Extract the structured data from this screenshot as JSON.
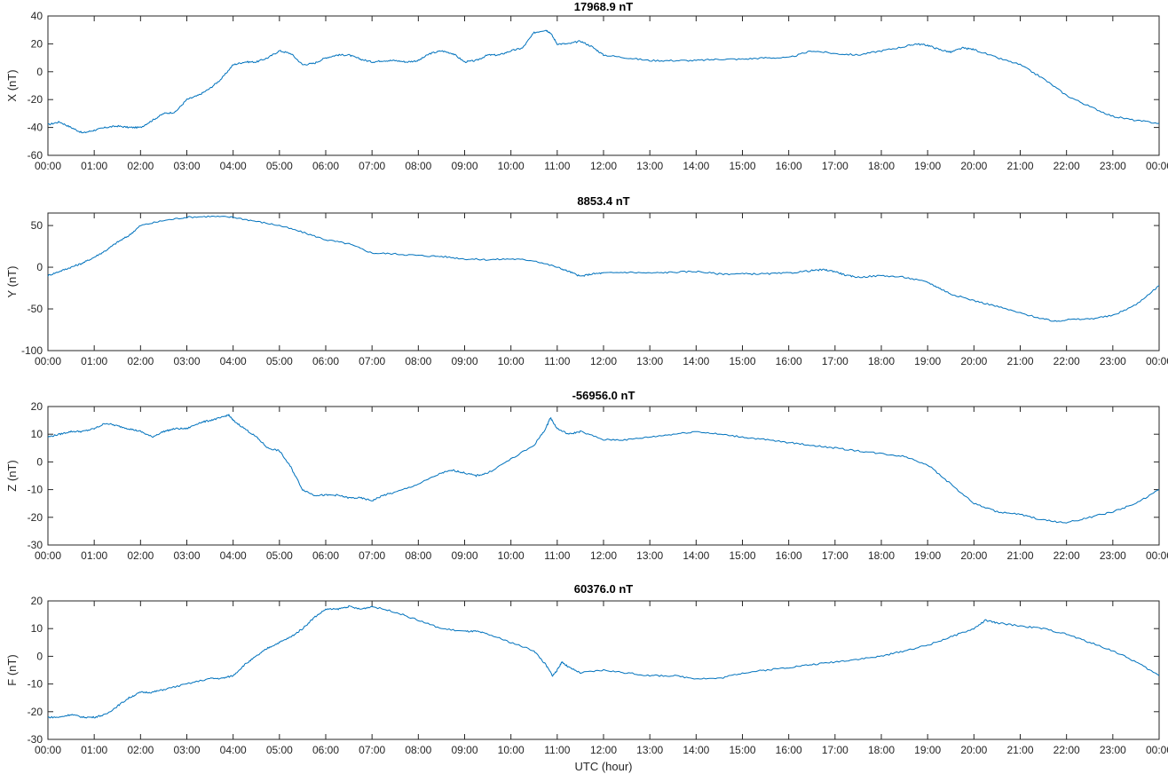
{
  "figure": {
    "xlabel": "UTC (hour)",
    "line_color": "#0072BD",
    "axis_color": "#262626"
  },
  "chart_data": [
    {
      "type": "line",
      "title": "17968.9 nT",
      "ylabel": "X (nT)",
      "xlabel": "",
      "xlim": [
        0,
        24
      ],
      "ylim": [
        -60,
        40
      ],
      "yticks": [
        -60,
        -40,
        -20,
        0,
        20,
        40
      ],
      "xtick_labels": [
        "00:00",
        "01:00",
        "02:00",
        "03:00",
        "04:00",
        "05:00",
        "06:00",
        "07:00",
        "08:00",
        "09:00",
        "10:00",
        "11:00",
        "12:00",
        "13:00",
        "14:00",
        "15:00",
        "16:00",
        "17:00",
        "18:00",
        "19:00",
        "20:00",
        "21:00",
        "22:00",
        "23:00",
        "00:00"
      ],
      "series": [
        {
          "x": [
            0,
            0.25,
            0.5,
            0.75,
            1.0,
            1.25,
            1.5,
            1.75,
            2.0,
            2.25,
            2.5,
            2.75,
            3.0,
            3.25,
            3.5,
            3.75,
            4.0,
            4.25,
            4.5,
            4.75,
            5.0,
            5.25,
            5.5,
            5.75,
            6.0,
            6.25,
            6.5,
            6.75,
            7.0,
            7.25,
            7.5,
            7.75,
            8.0,
            8.25,
            8.5,
            8.75,
            9.0,
            9.25,
            9.5,
            9.75,
            10.0,
            10.25,
            10.5,
            10.75,
            10.85,
            11.0,
            11.25,
            11.5,
            11.75,
            12.0,
            12.5,
            13.0,
            13.5,
            14.0,
            14.5,
            15.0,
            15.5,
            16.0,
            16.5,
            17.0,
            17.5,
            18.0,
            18.5,
            18.75,
            19.0,
            19.25,
            19.5,
            19.75,
            20.0,
            20.5,
            21.0,
            21.5,
            22.0,
            22.5,
            23.0,
            23.5,
            24.0
          ],
          "y": [
            -38,
            -36,
            -40,
            -44,
            -42,
            -40,
            -39,
            -40,
            -40,
            -35,
            -30,
            -29,
            -20,
            -17,
            -12,
            -5,
            5,
            7,
            7,
            10,
            15,
            13,
            5,
            6,
            10,
            12,
            12,
            9,
            7,
            8,
            8,
            7,
            8,
            13,
            15,
            13,
            7,
            8,
            12,
            12,
            15,
            17,
            28,
            30,
            28,
            20,
            20,
            22,
            18,
            12,
            10,
            8,
            8,
            8,
            9,
            9,
            10,
            10,
            15,
            13,
            12,
            15,
            18,
            20,
            19,
            16,
            14,
            17,
            16,
            10,
            5,
            -5,
            -17,
            -25,
            -32,
            -35,
            -37
          ]
        }
      ]
    },
    {
      "type": "line",
      "title": "8853.4 nT",
      "ylabel": "Y (nT)",
      "xlabel": "",
      "xlim": [
        0,
        24
      ],
      "ylim": [
        -100,
        65
      ],
      "yticks": [
        -100,
        -50,
        0,
        50
      ],
      "xtick_labels": [
        "00:00",
        "01:00",
        "02:00",
        "03:00",
        "04:00",
        "05:00",
        "06:00",
        "07:00",
        "08:00",
        "09:00",
        "10:00",
        "11:00",
        "12:00",
        "13:00",
        "14:00",
        "15:00",
        "16:00",
        "17:00",
        "18:00",
        "19:00",
        "20:00",
        "21:00",
        "22:00",
        "23:00",
        "00:00"
      ],
      "series": [
        {
          "x": [
            0,
            0.25,
            0.5,
            0.75,
            1.0,
            1.25,
            1.5,
            1.75,
            2.0,
            2.5,
            3.0,
            3.5,
            4.0,
            4.5,
            5.0,
            5.5,
            6.0,
            6.5,
            7.0,
            7.5,
            8.0,
            8.5,
            9.0,
            9.5,
            10.0,
            10.5,
            11.0,
            11.25,
            11.5,
            11.75,
            12.0,
            12.5,
            13.0,
            13.5,
            14.0,
            14.5,
            15.0,
            15.5,
            16.0,
            16.5,
            16.75,
            17.0,
            17.25,
            17.5,
            18.0,
            18.5,
            19.0,
            19.25,
            19.5,
            20.0,
            20.5,
            21.0,
            21.5,
            21.75,
            22.0,
            22.5,
            23.0,
            23.5,
            24.0
          ],
          "y": [
            -10,
            -5,
            0,
            5,
            12,
            20,
            30,
            38,
            50,
            56,
            60,
            61,
            60,
            55,
            50,
            42,
            33,
            28,
            17,
            16,
            14,
            13,
            10,
            9,
            10,
            8,
            0,
            -5,
            -11,
            -8,
            -7,
            -6,
            -7,
            -6,
            -5,
            -8,
            -8,
            -8,
            -7,
            -4,
            -3,
            -5,
            -10,
            -12,
            -10,
            -12,
            -18,
            -25,
            -32,
            -40,
            -47,
            -55,
            -62,
            -65,
            -63,
            -62,
            -58,
            -45,
            -22
          ]
        }
      ]
    },
    {
      "type": "line",
      "title": "-56956.0 nT",
      "ylabel": "Z (nT)",
      "xlabel": "",
      "xlim": [
        0,
        24
      ],
      "ylim": [
        -30,
        20
      ],
      "yticks": [
        -30,
        -20,
        -10,
        0,
        10,
        20
      ],
      "xtick_labels": [
        "00:00",
        "01:00",
        "02:00",
        "03:00",
        "04:00",
        "05:00",
        "06:00",
        "07:00",
        "08:00",
        "09:00",
        "10:00",
        "11:00",
        "12:00",
        "13:00",
        "14:00",
        "15:00",
        "16:00",
        "17:00",
        "18:00",
        "19:00",
        "20:00",
        "21:00",
        "22:00",
        "23:00",
        "00:00"
      ],
      "series": [
        {
          "x": [
            0,
            0.25,
            0.5,
            0.75,
            1.0,
            1.25,
            1.5,
            1.75,
            2.0,
            2.25,
            2.5,
            2.75,
            3.0,
            3.25,
            3.5,
            3.75,
            3.9,
            4.0,
            4.25,
            4.5,
            4.75,
            5.0,
            5.25,
            5.5,
            5.75,
            6.0,
            6.25,
            6.5,
            6.75,
            7.0,
            7.25,
            7.5,
            8.0,
            8.5,
            8.75,
            9.0,
            9.25,
            9.5,
            10.0,
            10.5,
            10.75,
            10.85,
            11.0,
            11.25,
            11.5,
            12.0,
            12.5,
            13.0,
            13.5,
            14.0,
            14.5,
            15.0,
            15.5,
            16.0,
            16.5,
            17.0,
            17.5,
            18.0,
            18.5,
            19.0,
            19.5,
            20.0,
            20.5,
            21.0,
            21.5,
            22.0,
            22.5,
            23.0,
            23.5,
            24.0
          ],
          "y": [
            9,
            10,
            11,
            11,
            12,
            14,
            13,
            12,
            11,
            9,
            11,
            12,
            12,
            14,
            15,
            16,
            17,
            15,
            12,
            9,
            5,
            4,
            -2,
            -10,
            -12,
            -12,
            -12,
            -13,
            -13,
            -14,
            -12,
            -11,
            -8,
            -4,
            -3,
            -4,
            -5,
            -4,
            1,
            6,
            12,
            16,
            12,
            10,
            11,
            8,
            8,
            9,
            10,
            11,
            10,
            9,
            8,
            7,
            6,
            5,
            4,
            3,
            2,
            -1,
            -8,
            -15,
            -18,
            -19,
            -21,
            -22,
            -20,
            -18,
            -15,
            -10
          ]
        }
      ]
    },
    {
      "type": "line",
      "title": "60376.0 nT",
      "ylabel": "F (nT)",
      "xlabel": "UTC (hour)",
      "xlim": [
        0,
        24
      ],
      "ylim": [
        -30,
        20
      ],
      "yticks": [
        -30,
        -20,
        -10,
        0,
        10,
        20
      ],
      "xtick_labels": [
        "00:00",
        "01:00",
        "02:00",
        "03:00",
        "04:00",
        "05:00",
        "06:00",
        "07:00",
        "08:00",
        "09:00",
        "10:00",
        "11:00",
        "12:00",
        "13:00",
        "14:00",
        "15:00",
        "16:00",
        "17:00",
        "18:00",
        "19:00",
        "20:00",
        "21:00",
        "22:00",
        "23:00",
        "00:00"
      ],
      "series": [
        {
          "x": [
            0,
            0.25,
            0.5,
            0.75,
            1.0,
            1.25,
            1.5,
            1.75,
            2.0,
            2.25,
            2.5,
            3.0,
            3.5,
            3.75,
            4.0,
            4.25,
            4.5,
            4.75,
            5.0,
            5.25,
            5.5,
            5.75,
            6.0,
            6.25,
            6.5,
            6.75,
            7.0,
            7.5,
            8.0,
            8.5,
            9.0,
            9.25,
            9.5,
            10.0,
            10.5,
            10.75,
            10.9,
            11.0,
            11.1,
            11.25,
            11.5,
            12.0,
            12.5,
            13.0,
            13.5,
            14.0,
            14.5,
            15.0,
            15.5,
            16.0,
            16.5,
            17.0,
            17.5,
            18.0,
            18.5,
            19.0,
            19.5,
            20.0,
            20.25,
            20.5,
            21.0,
            21.5,
            22.0,
            22.5,
            23.0,
            23.5,
            24.0
          ],
          "y": [
            -22,
            -22,
            -21,
            -22,
            -22,
            -21,
            -18,
            -15,
            -13,
            -13,
            -12,
            -10,
            -8,
            -8,
            -7,
            -3,
            0,
            3,
            5,
            7,
            10,
            14,
            17,
            17,
            18,
            17,
            18,
            16,
            13,
            10,
            9,
            9,
            8,
            5,
            2,
            -3,
            -7,
            -5,
            -2,
            -4,
            -6,
            -5,
            -6,
            -7,
            -7,
            -8,
            -8,
            -6,
            -5,
            -4,
            -3,
            -2,
            -1,
            0,
            2,
            4,
            7,
            10,
            13,
            12,
            11,
            10,
            8,
            5,
            2,
            -2,
            -7
          ]
        }
      ]
    }
  ]
}
